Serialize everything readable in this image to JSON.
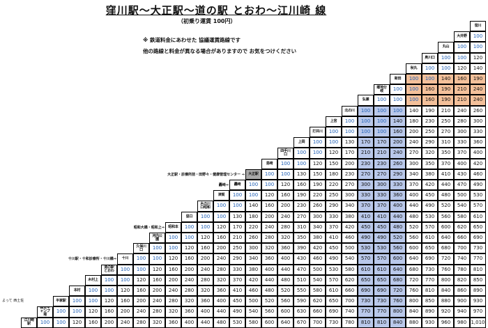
{
  "title": "窪川駅～大正駅～道の駅 とおわ～江川崎 線",
  "subtitle": "（初乗り運賃 100円）",
  "notes": [
    "※ 鉄道料金にあわせた 協議運賃路線です",
    "他の路線と料金が異なる場合がありますので お気をつけください"
  ],
  "bottom_note": "よって 西土佐",
  "colors": {
    "fare_blue": "#1f5fb5",
    "shade_blue": "#b9c8ea",
    "shade_orange": "#f3c09a",
    "gray_station": "#a8a8a8"
  },
  "stations": [
    {
      "name": "窪川",
      "label": ""
    },
    {
      "name": "大井野",
      "label": ""
    },
    {
      "name": "丸山",
      "label": ""
    },
    {
      "name": "奥川口",
      "label": ""
    },
    {
      "name": "秋丸",
      "label": ""
    },
    {
      "name": "新田",
      "label": ""
    },
    {
      "name": "郷地分岐",
      "label": ""
    },
    {
      "name": "弘瀬",
      "label": ""
    },
    {
      "name": "北の川",
      "label": ""
    },
    {
      "name": "上宮",
      "label": ""
    },
    {
      "name": "打井川",
      "label": ""
    },
    {
      "name": "上岡",
      "label": ""
    },
    {
      "name": "四手川口",
      "label": ""
    },
    {
      "name": "島崎",
      "label": ""
    },
    {
      "name": "大正駅",
      "label": "大正駅・診療所前・田野々・健康管理センター ⇒"
    },
    {
      "name": "轟崎",
      "label": "轟崎⇒"
    },
    {
      "name": "津賀",
      "label": ""
    },
    {
      "name": "木の川口昭和",
      "label": ""
    },
    {
      "name": "昼口",
      "label": ""
    },
    {
      "name": "昭和本",
      "label": "昭和大橋・昭和上⇒"
    },
    {
      "name": "河内公園",
      "label": ""
    },
    {
      "name": "久保川口",
      "label": ""
    },
    {
      "name": "十川",
      "label": "十川駅・十和診療所・十川橋⇒"
    },
    {
      "name": "道の駅とおわ",
      "label": ""
    },
    {
      "name": "木村上",
      "label": ""
    },
    {
      "name": "本村",
      "label": ""
    },
    {
      "name": "半家駅",
      "label": ""
    },
    {
      "name": "長生キャンプ場",
      "label": ""
    },
    {
      "name": "江川崎駅",
      "label": ""
    }
  ],
  "fare_rows": [
    [],
    [
      "100"
    ],
    [
      "100",
      "100"
    ],
    [
      "120",
      "100",
      "100"
    ],
    [
      "140",
      "120",
      "100",
      "100"
    ],
    [
      "190",
      "160",
      "140",
      "100",
      "100"
    ],
    [
      "240",
      "210",
      "190",
      "160",
      "100",
      "100"
    ],
    [
      "240",
      "210",
      "190",
      "160",
      "100",
      "100",
      "100"
    ],
    [
      "260",
      "240",
      "210",
      "190",
      "140",
      "100",
      "100",
      "100"
    ],
    [
      "300",
      "280",
      "250",
      "230",
      "180",
      "140",
      "100",
      "100",
      "100"
    ],
    [
      "330",
      "300",
      "270",
      "250",
      "200",
      "160",
      "100",
      "100",
      "100",
      "100"
    ],
    [
      "360",
      "330",
      "310",
      "290",
      "240",
      "200",
      "170",
      "170",
      "130",
      "100",
      "100"
    ],
    [
      "400",
      "370",
      "350",
      "320",
      "270",
      "240",
      "210",
      "210",
      "170",
      "120",
      "100",
      "100"
    ],
    [
      "420",
      "400",
      "370",
      "350",
      "300",
      "260",
      "230",
      "230",
      "200",
      "150",
      "120",
      "100",
      "100"
    ],
    [
      "460",
      "430",
      "410",
      "380",
      "340",
      "290",
      "270",
      "270",
      "230",
      "180",
      "150",
      "130",
      "100",
      "100"
    ],
    [
      "490",
      "470",
      "440",
      "420",
      "370",
      "330",
      "300",
      "300",
      "270",
      "220",
      "190",
      "160",
      "120",
      "100",
      "100"
    ],
    [
      "530",
      "500",
      "480",
      "450",
      "400",
      "360",
      "330",
      "330",
      "300",
      "250",
      "220",
      "190",
      "160",
      "120",
      "100",
      "100"
    ],
    [
      "570",
      "540",
      "520",
      "490",
      "440",
      "400",
      "370",
      "370",
      "340",
      "290",
      "260",
      "230",
      "200",
      "160",
      "140",
      "100",
      "100"
    ],
    [
      "610",
      "580",
      "560",
      "530",
      "480",
      "440",
      "410",
      "410",
      "380",
      "330",
      "300",
      "270",
      "240",
      "200",
      "180",
      "130",
      "100",
      "100"
    ],
    [
      "650",
      "620",
      "600",
      "570",
      "520",
      "480",
      "450",
      "450",
      "420",
      "370",
      "340",
      "310",
      "280",
      "240",
      "220",
      "170",
      "120",
      "100",
      "100"
    ],
    [
      "690",
      "660",
      "640",
      "610",
      "560",
      "520",
      "490",
      "490",
      "460",
      "410",
      "380",
      "350",
      "320",
      "280",
      "260",
      "210",
      "160",
      "120",
      "100",
      "100"
    ],
    [
      "730",
      "700",
      "680",
      "650",
      "600",
      "560",
      "530",
      "530",
      "500",
      "450",
      "420",
      "390",
      "360",
      "320",
      "300",
      "250",
      "200",
      "160",
      "120",
      "100",
      "100"
    ],
    [
      "770",
      "740",
      "720",
      "690",
      "640",
      "600",
      "570",
      "570",
      "540",
      "490",
      "460",
      "430",
      "400",
      "360",
      "340",
      "290",
      "240",
      "200",
      "160",
      "120",
      "100",
      "100"
    ],
    [
      "810",
      "780",
      "760",
      "730",
      "680",
      "640",
      "610",
      "610",
      "580",
      "530",
      "500",
      "470",
      "440",
      "400",
      "380",
      "330",
      "280",
      "240",
      "200",
      "160",
      "120",
      "100",
      "100"
    ],
    [
      "850",
      "820",
      "800",
      "770",
      "720",
      "680",
      "650",
      "650",
      "620",
      "570",
      "540",
      "510",
      "480",
      "440",
      "420",
      "370",
      "320",
      "280",
      "240",
      "200",
      "160",
      "120",
      "100",
      "100"
    ],
    [
      "890",
      "860",
      "840",
      "810",
      "760",
      "720",
      "690",
      "690",
      "660",
      "610",
      "580",
      "550",
      "520",
      "480",
      "460",
      "410",
      "360",
      "320",
      "280",
      "240",
      "200",
      "160",
      "120",
      "100",
      "100"
    ],
    [
      "930",
      "900",
      "880",
      "850",
      "800",
      "760",
      "730",
      "730",
      "700",
      "650",
      "620",
      "590",
      "560",
      "520",
      "500",
      "450",
      "400",
      "360",
      "320",
      "280",
      "240",
      "200",
      "160",
      "120",
      "100",
      "100"
    ],
    [
      "970",
      "940",
      "920",
      "890",
      "840",
      "800",
      "770",
      "770",
      "740",
      "690",
      "660",
      "630",
      "600",
      "560",
      "540",
      "490",
      "440",
      "400",
      "360",
      "320",
      "280",
      "240",
      "200",
      "160",
      "120",
      "100",
      "100"
    ],
    [
      "1,010",
      "980",
      "960",
      "930",
      "880",
      "840",
      "810",
      "810",
      "780",
      "730",
      "700",
      "670",
      "640",
      "600",
      "580",
      "530",
      "480",
      "440",
      "400",
      "360",
      "320",
      "280",
      "240",
      "200",
      "160",
      "120",
      "100",
      "100"
    ]
  ]
}
